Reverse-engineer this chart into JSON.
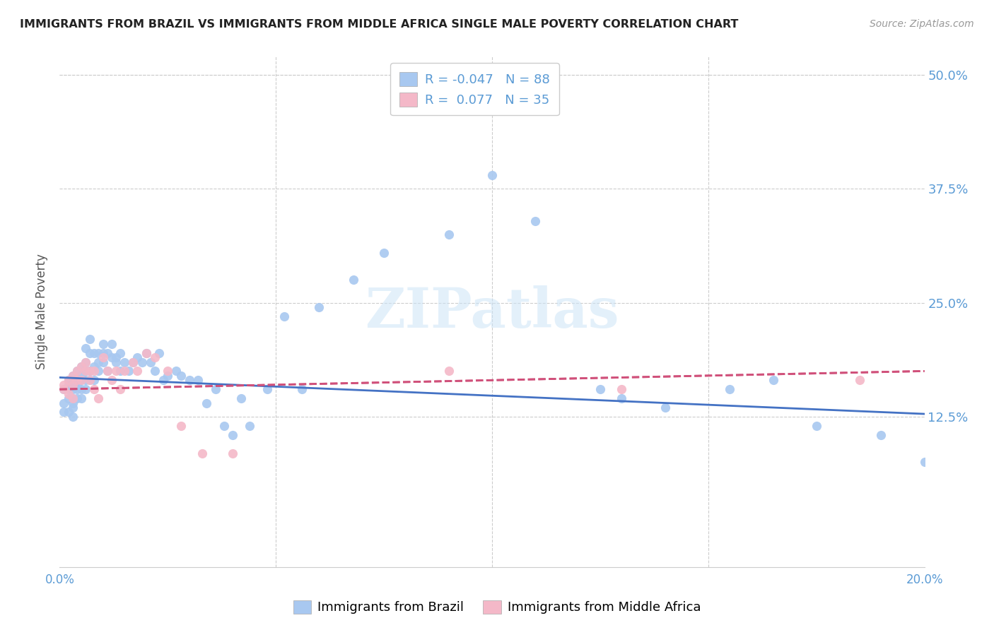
{
  "title": "IMMIGRANTS FROM BRAZIL VS IMMIGRANTS FROM MIDDLE AFRICA SINGLE MALE POVERTY CORRELATION CHART",
  "source": "Source: ZipAtlas.com",
  "ylabel": "Single Male Poverty",
  "color_brazil": "#a8c8f0",
  "color_africa": "#f4b8c8",
  "color_brazil_line": "#4472c4",
  "color_africa_line": "#d0507a",
  "color_axis_label": "#5b9bd5",
  "color_grid": "#cccccc",
  "watermark": "ZIPatlas",
  "brazil_x": [
    0.001,
    0.001,
    0.001,
    0.002,
    0.002,
    0.002,
    0.002,
    0.002,
    0.003,
    0.003,
    0.003,
    0.003,
    0.003,
    0.003,
    0.004,
    0.004,
    0.004,
    0.004,
    0.004,
    0.005,
    0.005,
    0.005,
    0.005,
    0.005,
    0.006,
    0.006,
    0.006,
    0.006,
    0.006,
    0.007,
    0.007,
    0.007,
    0.007,
    0.008,
    0.008,
    0.008,
    0.009,
    0.009,
    0.009,
    0.01,
    0.01,
    0.01,
    0.011,
    0.011,
    0.012,
    0.012,
    0.013,
    0.013,
    0.014,
    0.014,
    0.015,
    0.016,
    0.017,
    0.018,
    0.019,
    0.02,
    0.021,
    0.022,
    0.023,
    0.024,
    0.025,
    0.027,
    0.028,
    0.03,
    0.032,
    0.034,
    0.036,
    0.038,
    0.04,
    0.042,
    0.044,
    0.048,
    0.052,
    0.056,
    0.06,
    0.068,
    0.075,
    0.09,
    0.1,
    0.11,
    0.125,
    0.13,
    0.14,
    0.155,
    0.165,
    0.175,
    0.19,
    0.2
  ],
  "brazil_y": [
    0.155,
    0.14,
    0.13,
    0.165,
    0.145,
    0.13,
    0.155,
    0.16,
    0.14,
    0.155,
    0.17,
    0.135,
    0.125,
    0.145,
    0.155,
    0.165,
    0.145,
    0.16,
    0.175,
    0.155,
    0.17,
    0.145,
    0.165,
    0.18,
    0.165,
    0.175,
    0.185,
    0.155,
    0.2,
    0.175,
    0.165,
    0.195,
    0.21,
    0.18,
    0.165,
    0.195,
    0.185,
    0.175,
    0.195,
    0.185,
    0.195,
    0.205,
    0.175,
    0.195,
    0.19,
    0.205,
    0.185,
    0.19,
    0.175,
    0.195,
    0.185,
    0.175,
    0.185,
    0.19,
    0.185,
    0.195,
    0.185,
    0.175,
    0.195,
    0.165,
    0.17,
    0.175,
    0.17,
    0.165,
    0.165,
    0.14,
    0.155,
    0.115,
    0.105,
    0.145,
    0.115,
    0.155,
    0.235,
    0.155,
    0.245,
    0.275,
    0.305,
    0.325,
    0.39,
    0.34,
    0.155,
    0.145,
    0.135,
    0.155,
    0.165,
    0.115,
    0.105,
    0.075
  ],
  "africa_x": [
    0.001,
    0.001,
    0.002,
    0.002,
    0.003,
    0.003,
    0.003,
    0.004,
    0.004,
    0.005,
    0.005,
    0.006,
    0.006,
    0.007,
    0.007,
    0.008,
    0.008,
    0.009,
    0.01,
    0.011,
    0.012,
    0.013,
    0.014,
    0.015,
    0.017,
    0.018,
    0.02,
    0.022,
    0.025,
    0.028,
    0.033,
    0.04,
    0.09,
    0.13,
    0.185
  ],
  "africa_y": [
    0.155,
    0.16,
    0.15,
    0.165,
    0.16,
    0.17,
    0.145,
    0.165,
    0.175,
    0.165,
    0.18,
    0.175,
    0.185,
    0.165,
    0.175,
    0.175,
    0.155,
    0.145,
    0.19,
    0.175,
    0.165,
    0.175,
    0.155,
    0.175,
    0.185,
    0.175,
    0.195,
    0.19,
    0.175,
    0.115,
    0.085,
    0.085,
    0.175,
    0.155,
    0.165
  ],
  "brazil_line_x0": 0.0,
  "brazil_line_x1": 0.2,
  "brazil_line_y0": 0.168,
  "brazil_line_y1": 0.128,
  "africa_line_x0": 0.0,
  "africa_line_x1": 0.2,
  "africa_line_y0": 0.155,
  "africa_line_y1": 0.175,
  "xmin": 0.0,
  "xmax": 0.2,
  "ymin": -0.04,
  "ymax": 0.52,
  "yticks": [
    0.0,
    0.125,
    0.25,
    0.375,
    0.5
  ],
  "ytick_labels": [
    "",
    "12.5%",
    "25.0%",
    "37.5%",
    "50.0%"
  ]
}
